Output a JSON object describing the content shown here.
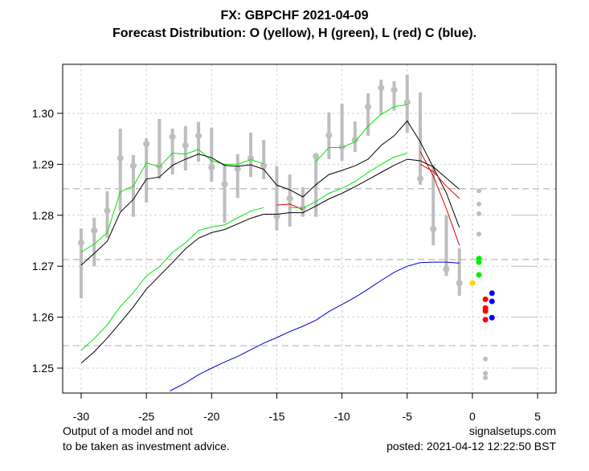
{
  "header": {
    "title": "FX: GBPCHF 2021-04-09",
    "subtitle": "Forecast Distribution: O (yellow), H (green), L (red) C (blue)."
  },
  "footer": {
    "left_line1": "Output of a model and not",
    "left_line2": "to be taken as investment advice.",
    "right_line1": "signalsetups.com",
    "right_line2": "posted: 2021-04-12 12:22:50 BST"
  },
  "chart_data": {
    "type": "line",
    "title": "FX: GBPCHF 2021-04-09",
    "subtitle": "Forecast Distribution: O (yellow), H (green), L (red) C (blue).",
    "xlabel": "",
    "ylabel": "",
    "xlim": [
      -31.4,
      6.4
    ],
    "ylim": [
      1.2455,
      1.3095
    ],
    "x_ticks": [
      -30,
      -25,
      -20,
      -15,
      -10,
      -5,
      0,
      5
    ],
    "x_tick_labels": [
      "-30",
      "-25",
      "-20",
      "-15",
      "-10",
      "-5",
      "0",
      "5"
    ],
    "y_ticks": [
      1.25,
      1.26,
      1.27,
      1.28,
      1.29,
      1.3
    ],
    "y_tick_labels": [
      "1.25",
      "1.26",
      "1.27",
      "1.28",
      "1.29",
      "1.30"
    ],
    "grid": true,
    "colors": {
      "bars": "#bebebe",
      "grid": "#d3d3d3",
      "ref_lines": "#bebebe",
      "high_band": "#00e600",
      "mid_band": "#000000",
      "low_band": "#e00000",
      "close_avg": "#0000cc",
      "open_dots": "#ffd700",
      "high_dots": "#00ee00",
      "low_dots": "#ff0000",
      "close_dots": "#0000ff",
      "dist_dots": "#bebebe"
    },
    "ref_lines": [
      1.2852,
      1.2713,
      1.2544
    ],
    "range_bars": {
      "x": [
        -30,
        -29,
        -28,
        -27,
        -26,
        -25,
        -24,
        -23,
        -22,
        -21,
        -20,
        -19,
        -18,
        -17,
        -16,
        -15,
        -14,
        -13,
        -12,
        -11,
        -10,
        -9,
        -8,
        -7,
        -6,
        -5,
        -4,
        -3,
        -2,
        -1
      ],
      "high": [
        1.2774,
        1.2795,
        1.2847,
        1.297,
        1.2918,
        1.2951,
        1.2989,
        1.297,
        1.2975,
        1.2983,
        1.2972,
        1.2901,
        1.292,
        1.2962,
        1.2948,
        1.2896,
        1.288,
        1.2855,
        1.2916,
        1.3002,
        1.3019,
        1.2984,
        1.3039,
        1.3066,
        1.3063,
        1.3076,
        1.3041,
        1.2899,
        1.28,
        1.2735
      ],
      "close": [
        1.2746,
        1.277,
        1.2809,
        1.2912,
        1.2897,
        1.294,
        1.2896,
        1.2954,
        1.2937,
        1.2956,
        1.2894,
        1.2861,
        1.2891,
        1.2912,
        1.2897,
        1.2798,
        1.2833,
        1.2814,
        1.2916,
        1.2957,
        1.2934,
        1.2948,
        1.3013,
        1.305,
        1.3046,
        1.3022,
        1.2872,
        1.2773,
        1.2694,
        1.2667
      ],
      "low": [
        1.2637,
        1.27,
        1.2756,
        1.2808,
        1.2797,
        1.2825,
        1.2871,
        1.288,
        1.2888,
        1.2905,
        1.2866,
        1.2785,
        1.2834,
        1.2875,
        1.2871,
        1.277,
        1.2778,
        1.2797,
        1.2797,
        1.291,
        1.2907,
        1.2924,
        1.2956,
        1.2997,
        1.3005,
        1.2962,
        1.286,
        1.2741,
        1.2681,
        1.2642
      ]
    },
    "series": [
      {
        "name": "upper-green",
        "color": "#00e600",
        "x": [
          -30,
          -29,
          -28,
          -27,
          -26,
          -25,
          -24,
          -23,
          -22,
          -21,
          -20,
          -19,
          -18,
          -17,
          -16,
          -15,
          -14,
          -13,
          -12,
          -11,
          -10,
          -9,
          -8,
          -7,
          -6,
          -5
        ],
        "values": [
          1.2728,
          1.2743,
          1.2766,
          1.2846,
          1.2857,
          1.2903,
          1.2895,
          1.2922,
          1.292,
          1.2929,
          1.2907,
          1.29,
          1.29,
          1.2909,
          1.2901,
          null,
          null,
          null,
          1.2905,
          1.2933,
          1.2933,
          1.2944,
          1.2975,
          1.2998,
          1.3013,
          1.3017
        ]
      },
      {
        "name": "upper-black",
        "color": "#000000",
        "x": [
          -30,
          -29,
          -28,
          -27,
          -26,
          -25,
          -24,
          -23,
          -22,
          -21,
          -20,
          -19,
          -18,
          -17,
          -16,
          -15,
          -14,
          -13,
          -12,
          -11,
          -10,
          -9,
          -8,
          -7,
          -6,
          -5,
          -4,
          -3,
          -2,
          -1
        ],
        "values": [
          1.2702,
          1.2725,
          1.2749,
          1.2806,
          1.2831,
          1.2871,
          1.2875,
          1.2898,
          1.291,
          1.292,
          1.2913,
          1.2898,
          1.2896,
          1.2899,
          1.289,
          1.2859,
          1.285,
          1.2836,
          1.286,
          1.288,
          1.2888,
          1.2897,
          1.291,
          1.2937,
          1.2956,
          1.2985,
          1.2944,
          1.2894,
          1.2844,
          1.2776
        ]
      },
      {
        "name": "upper-red",
        "color": "#e00000",
        "x": [
          -15,
          -14,
          -13,
          -4,
          -3,
          -2,
          -1
        ],
        "values": [
          1.282,
          1.2822,
          1.2811,
          1.2925,
          1.2877,
          1.2813,
          1.2741
        ]
      },
      {
        "name": "lower-green",
        "color": "#00e600",
        "x": [
          -30,
          -29,
          -28,
          -27,
          -26,
          -25,
          -24,
          -23,
          -22,
          -21,
          -20,
          -19,
          -18,
          -17,
          -16,
          null,
          -14,
          -13,
          -12,
          -11,
          -10,
          -9,
          -8,
          -7,
          -6,
          -5
        ],
        "values": [
          1.2535,
          1.2558,
          1.2585,
          1.2621,
          1.2648,
          1.2681,
          1.2699,
          1.2727,
          1.2746,
          1.277,
          1.2777,
          1.2781,
          1.2795,
          1.2808,
          1.2815,
          null,
          1.2815,
          1.2814,
          1.2827,
          1.2843,
          1.2853,
          1.2866,
          1.2884,
          1.29,
          1.2914,
          1.2922
        ]
      },
      {
        "name": "lower-black",
        "color": "#000000",
        "x": [
          -30,
          -29,
          -28,
          -27,
          -26,
          -25,
          -24,
          -23,
          -22,
          -21,
          -20,
          -19,
          -18,
          -17,
          -16,
          -15,
          -14,
          -13,
          -12,
          -11,
          -10,
          -9,
          -8,
          -7,
          -6,
          -5,
          -4,
          -3,
          -2,
          -1
        ],
        "values": [
          1.251,
          1.2532,
          1.2559,
          1.2589,
          1.262,
          1.2655,
          1.2681,
          1.2707,
          1.2734,
          1.2755,
          1.2766,
          1.2772,
          1.2783,
          1.2794,
          1.2802,
          1.2802,
          1.2805,
          1.2805,
          1.2818,
          1.2832,
          1.2843,
          1.2856,
          1.287,
          1.2884,
          1.2898,
          1.291,
          1.2907,
          1.2895,
          1.2873,
          1.2851
        ]
      },
      {
        "name": "lower-red",
        "color": "#e00000",
        "x": [
          -4,
          -3,
          -2,
          -1
        ],
        "values": [
          1.29,
          1.2886,
          1.2857,
          1.2833
        ]
      },
      {
        "name": "close-average-blue",
        "color": "#0000cc",
        "x": [
          -23.2,
          -22,
          -21,
          -20,
          -19,
          -18,
          -17,
          -16,
          -15,
          -14,
          -13,
          -12,
          -11,
          -10,
          -9,
          -8,
          -7,
          -6,
          -5,
          -4,
          -3,
          -2,
          -1
        ],
        "values": [
          1.2455,
          1.2471,
          1.2487,
          1.25,
          1.2512,
          1.2523,
          1.2536,
          1.2549,
          1.256,
          1.2572,
          1.2582,
          1.2594,
          1.2611,
          1.2625,
          1.2639,
          1.2655,
          1.2672,
          1.2688,
          1.27,
          1.2707,
          1.2708,
          1.2708,
          1.2706
        ]
      }
    ],
    "forecast_points": {
      "open": [
        {
          "x": 0.0,
          "y": 1.2667
        }
      ],
      "high": [
        {
          "x": 0.5,
          "y": 1.2715
        },
        {
          "x": 0.5,
          "y": 1.2708
        },
        {
          "x": 0.5,
          "y": 1.2683
        }
      ],
      "low": [
        {
          "x": 1.0,
          "y": 1.2635
        },
        {
          "x": 1.0,
          "y": 1.2618
        },
        {
          "x": 1.0,
          "y": 1.2612
        },
        {
          "x": 1.0,
          "y": 1.2595
        }
      ],
      "close": [
        {
          "x": 1.5,
          "y": 1.2647
        },
        {
          "x": 1.5,
          "y": 1.2631
        },
        {
          "x": 1.5,
          "y": 1.2599
        }
      ],
      "dist_grey": [
        {
          "x": 0.5,
          "y": 1.2848
        },
        {
          "x": 0.5,
          "y": 1.2822
        },
        {
          "x": 0.5,
          "y": 1.2803
        },
        {
          "x": 0.5,
          "y": 1.2763
        },
        {
          "x": 1.0,
          "y": 1.2518
        },
        {
          "x": 1.0,
          "y": 1.249
        },
        {
          "x": 1.0,
          "y": 1.2481
        }
      ]
    }
  }
}
